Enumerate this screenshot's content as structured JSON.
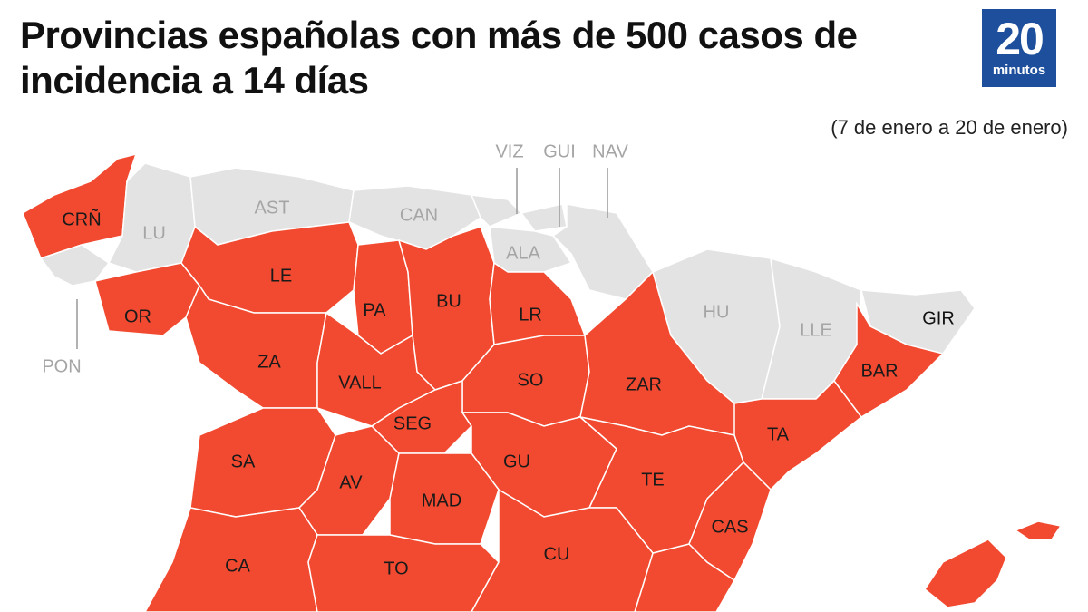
{
  "header": {
    "title": "Provincias españolas con más de 500 casos de incidencia a 14 días",
    "subtitle": "(7 de enero a 20 de enero)",
    "logo": {
      "number": "20",
      "word": "minutos"
    }
  },
  "map": {
    "colors": {
      "over": "#f24a30",
      "under": "#e3e3e3"
    },
    "provinces": [
      {
        "label": "CRÑ",
        "over_500": true
      },
      {
        "label": "LU",
        "over_500": false
      },
      {
        "label": "PON",
        "over_500": false
      },
      {
        "label": "OR",
        "over_500": true
      },
      {
        "label": "AST",
        "over_500": false
      },
      {
        "label": "CAN",
        "over_500": false
      },
      {
        "label": "VIZ",
        "over_500": false
      },
      {
        "label": "GUI",
        "over_500": false
      },
      {
        "label": "NAV",
        "over_500": false
      },
      {
        "label": "ALA",
        "over_500": false
      },
      {
        "label": "HU",
        "over_500": false
      },
      {
        "label": "LLE",
        "over_500": false
      },
      {
        "label": "GIR",
        "over_500": false
      },
      {
        "label": "BAR",
        "over_500": true
      },
      {
        "label": "LE",
        "over_500": true
      },
      {
        "label": "PA",
        "over_500": true
      },
      {
        "label": "BU",
        "over_500": true
      },
      {
        "label": "LR",
        "over_500": true
      },
      {
        "label": "ZA",
        "over_500": true
      },
      {
        "label": "VALL",
        "over_500": true
      },
      {
        "label": "SO",
        "over_500": true
      },
      {
        "label": "ZAR",
        "over_500": true
      },
      {
        "label": "SEG",
        "over_500": true
      },
      {
        "label": "SA",
        "over_500": true
      },
      {
        "label": "AV",
        "over_500": true
      },
      {
        "label": "GU",
        "over_500": true
      },
      {
        "label": "TA",
        "over_500": true
      },
      {
        "label": "TE",
        "over_500": true
      },
      {
        "label": "MAD",
        "over_500": true
      },
      {
        "label": "CAS",
        "over_500": true
      },
      {
        "label": "CA",
        "over_500": true
      },
      {
        "label": "TO",
        "over_500": true
      },
      {
        "label": "CU",
        "over_500": true
      }
    ]
  }
}
